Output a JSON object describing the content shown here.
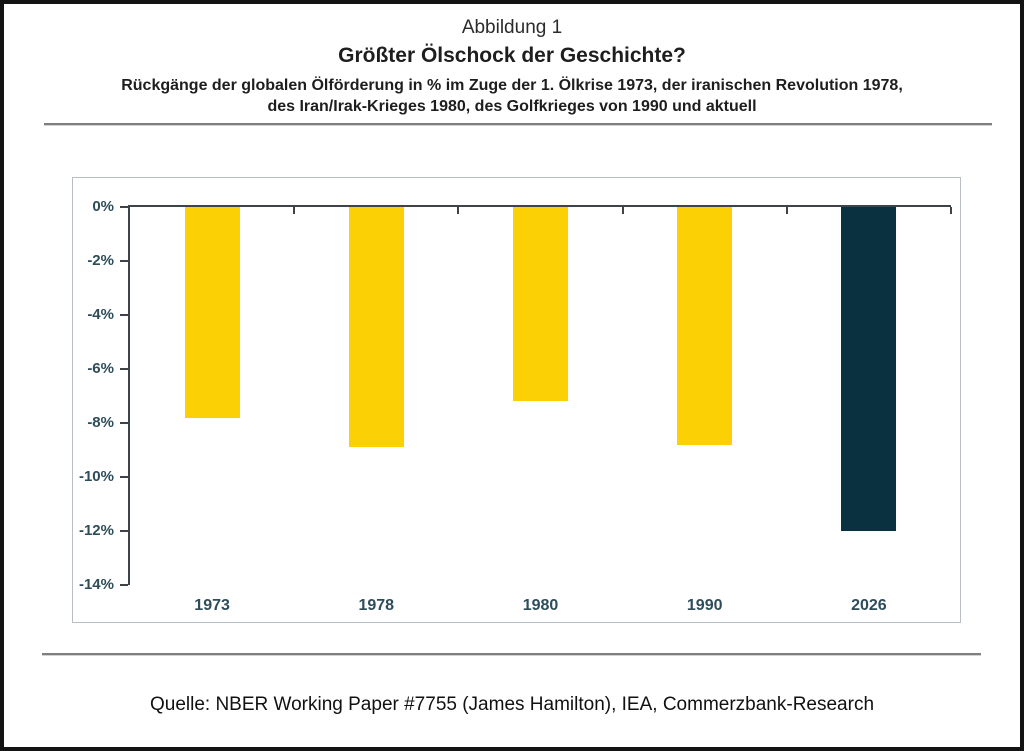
{
  "figure": {
    "label": "Abbildung 1",
    "title": "Größter Ölschock der Geschichte?",
    "subtitle_line1": "Rückgänge der globalen Ölförderung in % im Zuge der 1. Ölkrise 1973, der iranischen Revolution 1978,",
    "subtitle_line2": "des Iran/Irak-Krieges 1980, des Golfkrieges von 1990 und aktuell",
    "source": "Quelle: NBER Working Paper #7755 (James Hamilton), IEA, Commerzbank-Research"
  },
  "colors": {
    "bar_yellow": "#FBD105",
    "bar_dark": "#0A3140",
    "axis": "#3d4347",
    "tick_label": "#2e4d5a",
    "panel_border": "#b9bec2",
    "rule_gray": "#7f7f7f",
    "outer_border": "#131313"
  },
  "chart_data": {
    "type": "bar",
    "title": "Größter Ölschock der Geschichte?",
    "subtitle": "Rückgänge der globalen Ölförderung in % im Zuge der 1. Ölkrise 1973, der iranischen Revolution 1978, des Iran/Irak-Krieges 1980, des Golfkrieges von 1990 und aktuell",
    "categories": [
      "1973",
      "1978",
      "1980",
      "1990",
      "2026"
    ],
    "values": [
      -7.8,
      -8.9,
      -7.2,
      -8.8,
      -12.0
    ],
    "bar_colors": [
      "#FBD105",
      "#FBD105",
      "#FBD105",
      "#FBD105",
      "#0A3140"
    ],
    "xlabel": "",
    "ylabel": "",
    "ylim": [
      -14,
      0
    ],
    "yticks": [
      0,
      -2,
      -4,
      -6,
      -8,
      -10,
      -12,
      -14
    ],
    "ytick_labels": [
      "0%",
      "-2%",
      "-4%",
      "-6%",
      "-8%",
      "-10%",
      "-12%",
      "-14%"
    ],
    "grid": false,
    "legend": false,
    "orientation": "vertical-negative"
  }
}
